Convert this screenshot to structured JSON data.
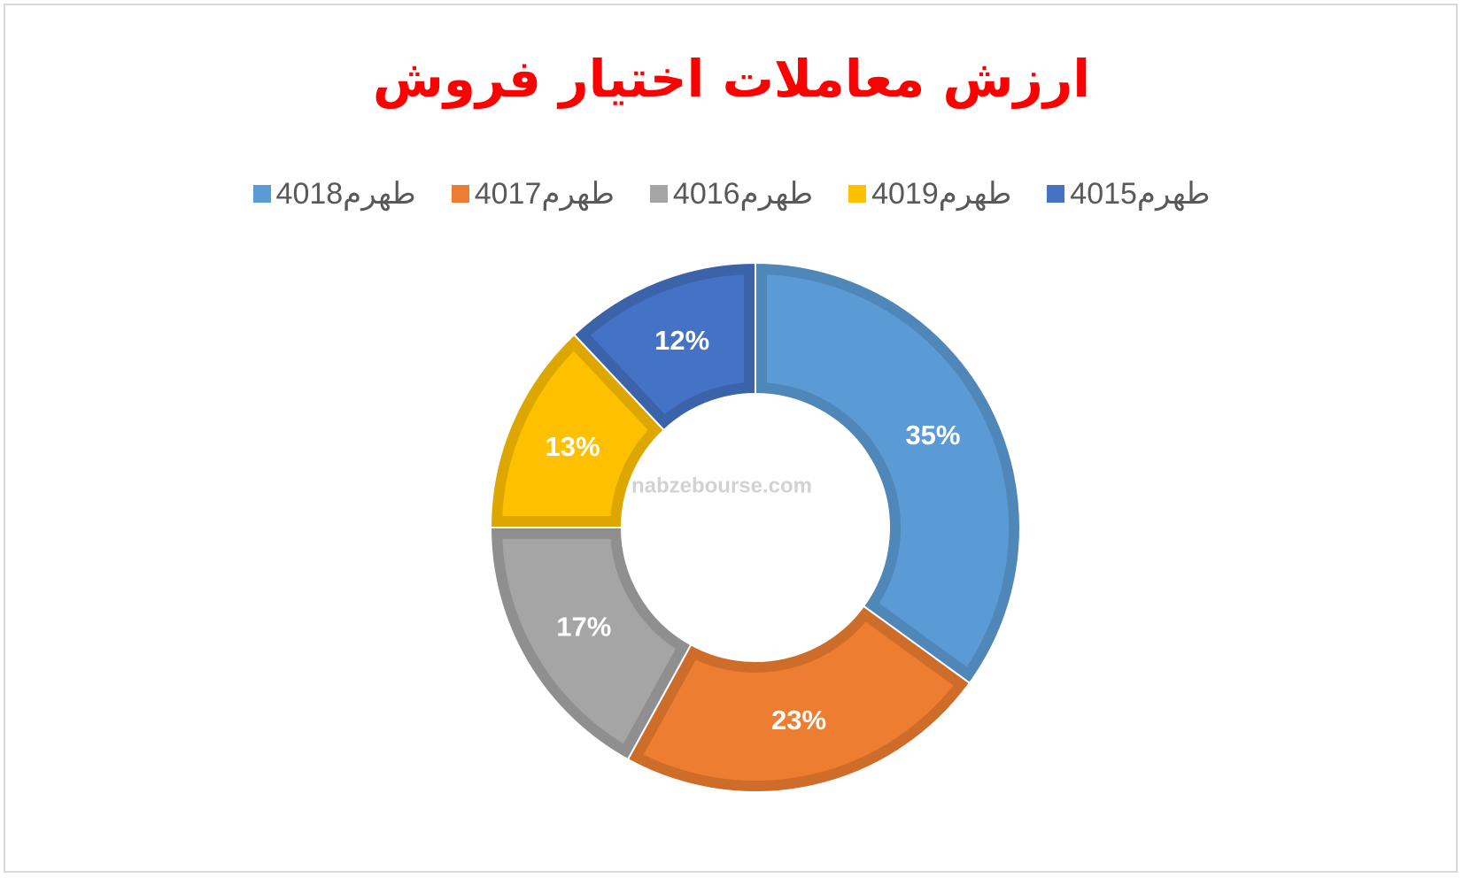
{
  "chart_data": {
    "type": "donut",
    "title": "ارزش معاملات اختیار فروش",
    "categories": [
      "طهرم4018",
      "طهرم4017",
      "طهرم4016",
      "طهرم4019",
      "طهرم4015"
    ],
    "values": [
      35,
      23,
      17,
      13,
      12
    ],
    "value_labels": [
      "35%",
      "23%",
      "17%",
      "13%",
      "12%"
    ],
    "colors": [
      "#5b9bd5",
      "#ed7d31",
      "#a5a5a5",
      "#ffc000",
      "#4472c4"
    ],
    "legend": "top",
    "watermark": "nabzebourse.com"
  }
}
